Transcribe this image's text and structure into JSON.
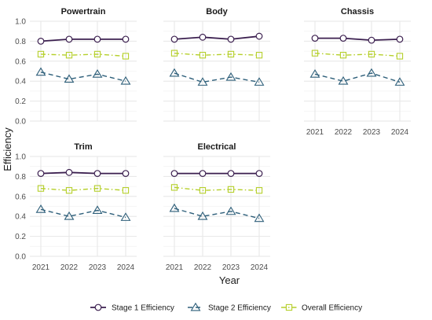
{
  "chart_data": {
    "type": "line",
    "xlabel": "Year",
    "ylabel": "Efficiency",
    "ylim": [
      0,
      1.0
    ],
    "y_ticks": [
      0.0,
      0.2,
      0.4,
      0.6,
      0.8,
      1.0
    ],
    "y_tick_labels": [
      "0.0",
      "0.2",
      "0.4",
      "0.6",
      "0.8",
      "1.0"
    ],
    "x": [
      "2021",
      "2022",
      "2023",
      "2024"
    ],
    "grid": true,
    "legend_position": "bottom",
    "series_styles": [
      {
        "name": "Stage 1 Efficiency",
        "color": "#3b1f4f",
        "marker": "circle",
        "line": "solid"
      },
      {
        "name": "Stage 2 Efficiency",
        "color": "#2e5f7a",
        "marker": "triangle",
        "line": "dashed"
      },
      {
        "name": "Overall Efficiency",
        "color": "#b5cf2a",
        "marker": "square",
        "line": "dotdash"
      }
    ],
    "facets": [
      {
        "title": "Powertrain",
        "series": [
          {
            "name": "Stage 1 Efficiency",
            "values": [
              0.8,
              0.82,
              0.82,
              0.82
            ]
          },
          {
            "name": "Stage 2 Efficiency",
            "values": [
              0.49,
              0.42,
              0.47,
              0.4
            ]
          },
          {
            "name": "Overall Efficiency",
            "values": [
              0.67,
              0.66,
              0.67,
              0.65
            ]
          }
        ]
      },
      {
        "title": "Body",
        "series": [
          {
            "name": "Stage 1 Efficiency",
            "values": [
              0.82,
              0.84,
              0.82,
              0.85
            ]
          },
          {
            "name": "Stage 2 Efficiency",
            "values": [
              0.48,
              0.39,
              0.44,
              0.39
            ]
          },
          {
            "name": "Overall Efficiency",
            "values": [
              0.68,
              0.66,
              0.67,
              0.66
            ]
          }
        ]
      },
      {
        "title": "Chassis",
        "series": [
          {
            "name": "Stage 1 Efficiency",
            "values": [
              0.83,
              0.83,
              0.81,
              0.82
            ]
          },
          {
            "name": "Stage 2 Efficiency",
            "values": [
              0.47,
              0.4,
              0.48,
              0.39
            ]
          },
          {
            "name": "Overall Efficiency",
            "values": [
              0.68,
              0.66,
              0.67,
              0.65
            ]
          }
        ]
      },
      {
        "title": "Trim",
        "series": [
          {
            "name": "Stage 1 Efficiency",
            "values": [
              0.83,
              0.84,
              0.83,
              0.83
            ]
          },
          {
            "name": "Stage 2 Efficiency",
            "values": [
              0.47,
              0.4,
              0.46,
              0.39
            ]
          },
          {
            "name": "Overall Efficiency",
            "values": [
              0.68,
              0.66,
              0.68,
              0.66
            ]
          }
        ]
      },
      {
        "title": "Electrical",
        "series": [
          {
            "name": "Stage 1 Efficiency",
            "values": [
              0.83,
              0.83,
              0.83,
              0.83
            ]
          },
          {
            "name": "Stage 2 Efficiency",
            "values": [
              0.48,
              0.4,
              0.45,
              0.38
            ]
          },
          {
            "name": "Overall Efficiency",
            "values": [
              0.69,
              0.66,
              0.67,
              0.66
            ]
          }
        ]
      }
    ]
  }
}
